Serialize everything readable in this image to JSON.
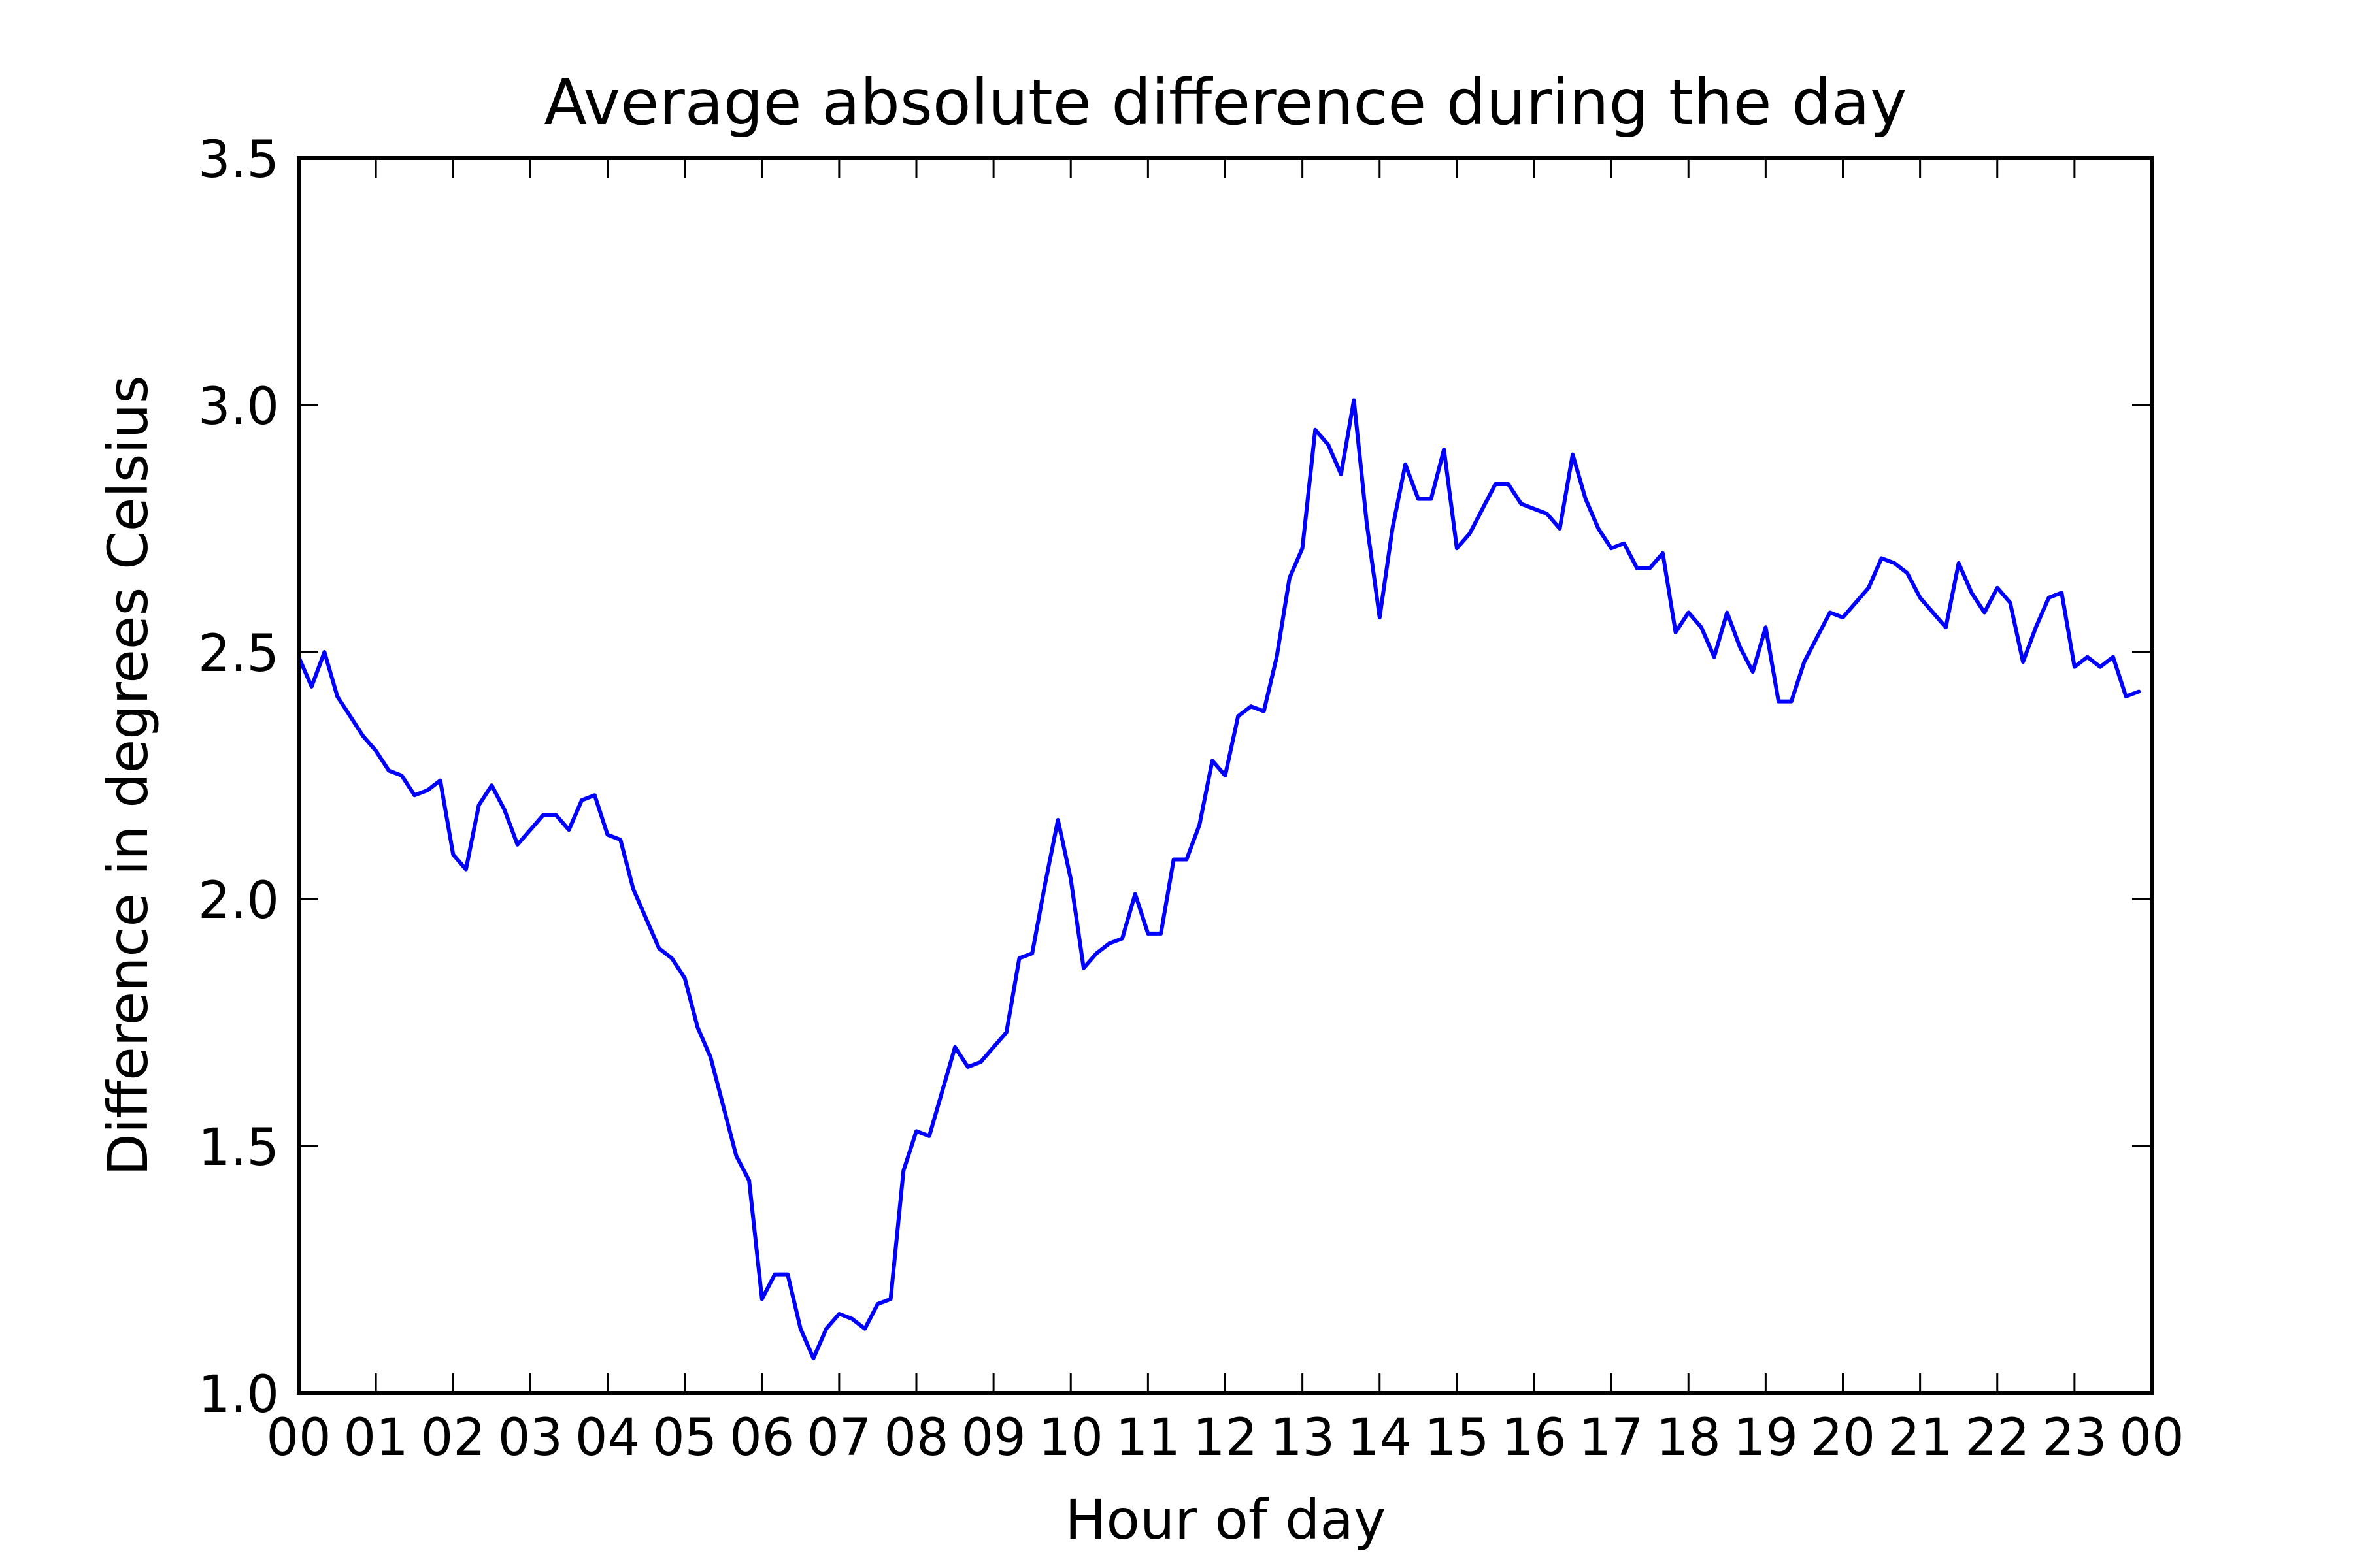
{
  "chart_data": {
    "type": "line",
    "title": "Average absolute difference during the day",
    "xlabel": "Hour of day",
    "ylabel": "Difference in degrees Celsius",
    "xlim": [
      0,
      24
    ],
    "ylim": [
      1.0,
      3.5
    ],
    "grid": false,
    "legend": "none",
    "line_color": "#0000ff",
    "x_ticks": [
      0,
      1,
      2,
      3,
      4,
      5,
      6,
      7,
      8,
      9,
      10,
      11,
      12,
      13,
      14,
      15,
      16,
      17,
      18,
      19,
      20,
      21,
      22,
      23,
      24
    ],
    "x_tick_labels": [
      "00",
      "01",
      "02",
      "03",
      "04",
      "05",
      "06",
      "07",
      "08",
      "09",
      "10",
      "11",
      "12",
      "13",
      "14",
      "15",
      "16",
      "17",
      "18",
      "19",
      "20",
      "21",
      "22",
      "23",
      "00"
    ],
    "y_ticks": [
      1.0,
      1.5,
      2.0,
      2.5,
      3.0,
      3.5
    ],
    "y_tick_labels": [
      "1.0",
      "1.5",
      "2.0",
      "2.5",
      "3.0",
      "3.5"
    ],
    "series": [
      {
        "x": [
          0,
          0.1667,
          0.3333,
          0.5,
          0.6667,
          0.8333,
          1,
          1.1667,
          1.3333,
          1.5,
          1.6667,
          1.8333,
          2,
          2.1667,
          2.3333,
          2.5,
          2.6667,
          2.8333,
          3,
          3.1667,
          3.3333,
          3.5,
          3.6667,
          3.8333,
          4,
          4.1667,
          4.3333,
          4.5,
          4.6667,
          4.8333,
          5,
          5.1667,
          5.3333,
          5.5,
          5.6667,
          5.8333,
          6,
          6.1667,
          6.3333,
          6.5,
          6.6667,
          6.8333,
          7,
          7.1667,
          7.3333,
          7.5,
          7.6667,
          7.8333,
          8,
          8.1667,
          8.3333,
          8.5,
          8.6667,
          8.8333,
          9,
          9.1667,
          9.3333,
          9.5,
          9.6667,
          9.8333,
          10,
          10.1667,
          10.3333,
          10.5,
          10.6667,
          10.8333,
          11,
          11.1667,
          11.3333,
          11.5,
          11.6667,
          11.8333,
          12,
          12.1667,
          12.3333,
          12.5,
          12.6667,
          12.8333,
          13,
          13.1667,
          13.3333,
          13.5,
          13.6667,
          13.8333,
          14,
          14.1667,
          14.3333,
          14.5,
          14.6667,
          14.8333,
          15,
          15.1667,
          15.3333,
          15.5,
          15.6667,
          15.8333,
          16,
          16.1667,
          16.3333,
          16.5,
          16.6667,
          16.8333,
          17,
          17.1667,
          17.3333,
          17.5,
          17.6667,
          17.8333,
          18,
          18.1667,
          18.3333,
          18.5,
          18.6667,
          18.8333,
          19,
          19.1667,
          19.3333,
          19.5,
          19.6667,
          19.8333,
          20,
          20.1667,
          20.3333,
          20.5,
          20.6667,
          20.8333,
          21,
          21.1667,
          21.3333,
          21.5,
          21.6667,
          21.8333,
          22,
          22.1667,
          22.3333,
          22.5,
          22.6667,
          22.8333,
          23,
          23.1667,
          23.3333,
          23.5,
          23.6667,
          23.8333
        ],
        "y": [
          2.49,
          2.43,
          2.5,
          2.41,
          2.37,
          2.33,
          2.3,
          2.26,
          2.25,
          2.21,
          2.22,
          2.24,
          2.09,
          2.06,
          2.19,
          2.23,
          2.18,
          2.11,
          2.14,
          2.17,
          2.17,
          2.14,
          2.2,
          2.21,
          2.13,
          2.12,
          2.02,
          1.96,
          1.9,
          1.88,
          1.84,
          1.74,
          1.68,
          1.58,
          1.48,
          1.43,
          1.19,
          1.24,
          1.24,
          1.13,
          1.07,
          1.13,
          1.16,
          1.15,
          1.13,
          1.18,
          1.19,
          1.45,
          1.53,
          1.52,
          1.61,
          1.7,
          1.66,
          1.67,
          1.7,
          1.73,
          1.88,
          1.89,
          2.03,
          2.16,
          2.04,
          1.86,
          1.89,
          1.91,
          1.92,
          2.01,
          1.93,
          1.93,
          2.08,
          2.08,
          2.15,
          2.28,
          2.25,
          2.37,
          2.39,
          2.38,
          2.49,
          2.65,
          2.71,
          2.95,
          2.92,
          2.86,
          3.01,
          2.76,
          2.57,
          2.75,
          2.88,
          2.81,
          2.81,
          2.91,
          2.71,
          2.74,
          2.79,
          2.84,
          2.84,
          2.8,
          2.79,
          2.78,
          2.75,
          2.9,
          2.81,
          2.75,
          2.71,
          2.72,
          2.67,
          2.67,
          2.7,
          2.54,
          2.58,
          2.55,
          2.49,
          2.58,
          2.51,
          2.46,
          2.55,
          2.4,
          2.4,
          2.48,
          2.53,
          2.58,
          2.57,
          2.6,
          2.63,
          2.69,
          2.68,
          2.66,
          2.61,
          2.58,
          2.55,
          2.68,
          2.62,
          2.58,
          2.63,
          2.6,
          2.48,
          2.55,
          2.61,
          2.62,
          2.47,
          2.49,
          2.47,
          2.49,
          2.41,
          2.42
        ]
      }
    ]
  }
}
